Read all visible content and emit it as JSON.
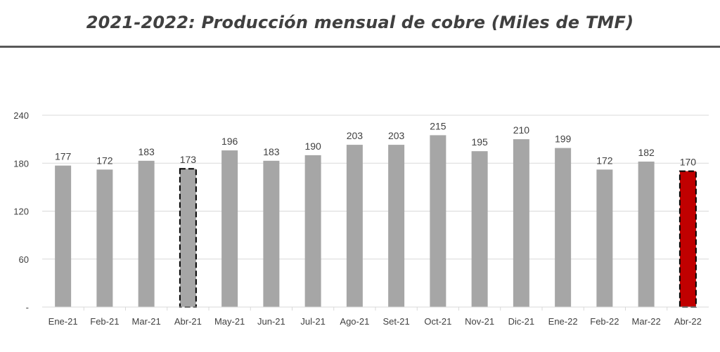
{
  "chart_data": {
    "type": "bar",
    "title": "2021-2022: Producción mensual de cobre (Miles de TMF)",
    "categories": [
      "Ene-21",
      "Feb-21",
      "Mar-21",
      "Abr-21",
      "May-21",
      "Jun-21",
      "Jul-21",
      "Ago-21",
      "Set-21",
      "Oct-21",
      "Nov-21",
      "Dic-21",
      "Ene-22",
      "Feb-22",
      "Mar-22",
      "Abr-22"
    ],
    "values": [
      177,
      172,
      183,
      173,
      196,
      183,
      190,
      203,
      203,
      215,
      195,
      210,
      199,
      172,
      182,
      170
    ],
    "ylim": [
      0,
      240
    ],
    "yticks": [
      "-",
      "60",
      "120",
      "180",
      "240"
    ],
    "grid": true,
    "colors": {
      "bar": "#a6a6a6",
      "highlight": "#c00000",
      "grid": "#d9d9d9",
      "text": "#404040"
    },
    "highlights": [
      {
        "category": "Abr-21",
        "style": "dashed-outline"
      },
      {
        "category": "Abr-22",
        "style": "red-fill-dashed-outline"
      }
    ]
  }
}
